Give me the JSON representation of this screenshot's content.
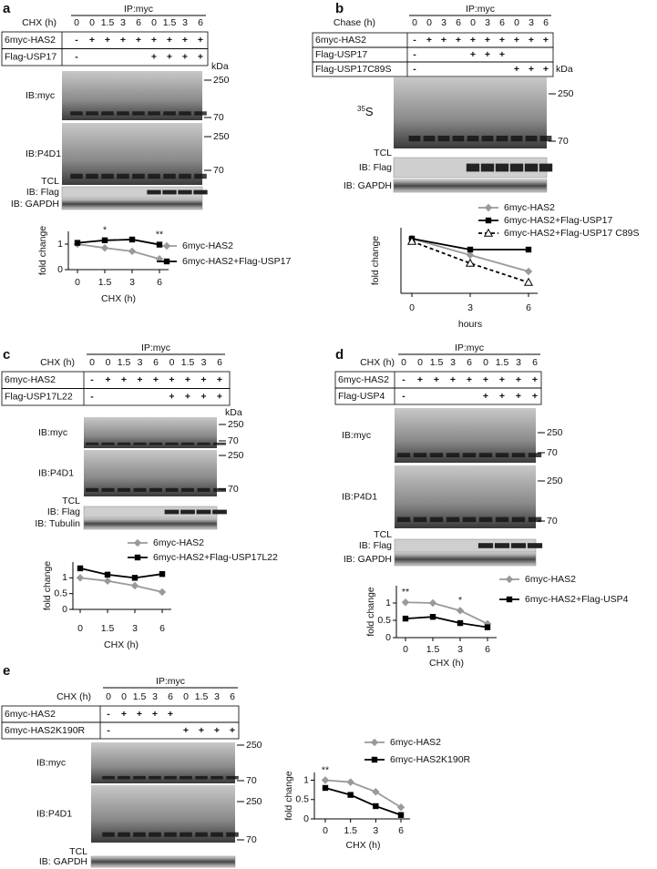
{
  "panels": [
    {
      "label": "a",
      "ip": "IP:myc",
      "time_label": "CHX (h)",
      "times": [
        "0",
        "0",
        "1.5",
        "3",
        "6",
        "0",
        "1.5",
        "3",
        "6"
      ],
      "rows": [
        {
          "name": "6myc-HAS2",
          "signs": [
            "-",
            "+",
            "+",
            "+",
            "+",
            "+",
            "+",
            "+",
            "+"
          ]
        },
        {
          "name": "Flag-USP17",
          "signs": [
            "-",
            null,
            null,
            null,
            null,
            "+",
            "+",
            "+",
            "+"
          ]
        }
      ],
      "kda": "kDa",
      "blots": [
        {
          "label": "IB:myc",
          "markers": [
            "250",
            "70"
          ]
        },
        {
          "label": "IB:P4D1",
          "markers": [
            "250",
            "70"
          ]
        }
      ],
      "tcl": "TCL",
      "strips": [
        "IB: Flag",
        "IB: GAPDH"
      ],
      "chart": {
        "type": "line",
        "ylabel": "fold change",
        "xlabel": "CHX (h)",
        "categories": [
          "0",
          "1.5",
          "3",
          "6"
        ],
        "ylim": [
          0,
          1.5
        ],
        "yticks": [
          0,
          1
        ],
        "annotations": [
          {
            "text": "*",
            "x": "1.5"
          },
          {
            "text": "**",
            "x": "6"
          }
        ],
        "series": [
          {
            "name": "6myc-HAS2",
            "color": "#999999",
            "marker": "diamond",
            "values": [
              1.0,
              0.85,
              0.72,
              0.42
            ]
          },
          {
            "name": "6myc-HAS2+Flag-USP17",
            "color": "#000000",
            "marker": "square",
            "values": [
              1.05,
              1.15,
              1.18,
              0.98
            ]
          }
        ]
      }
    },
    {
      "label": "b",
      "ip": "IP:myc",
      "time_label": "Chase (h)",
      "times": [
        "0",
        "0",
        "3",
        "6",
        "0",
        "3",
        "6",
        "0",
        "3",
        "6"
      ],
      "rows": [
        {
          "name": "6myc-HAS2",
          "signs": [
            "-",
            "+",
            "+",
            "+",
            "+",
            "+",
            "+",
            "+",
            "+",
            "+"
          ]
        },
        {
          "name": "Flag-USP17",
          "signs": [
            "-",
            null,
            null,
            null,
            "+",
            "+",
            "+",
            null,
            null,
            null
          ]
        },
        {
          "name": "Flag-USP17C89S",
          "signs": [
            "-",
            null,
            null,
            null,
            null,
            null,
            null,
            "+",
            "+",
            "+"
          ]
        }
      ],
      "kda": "kDa",
      "blots": [
        {
          "label_sup": "35",
          "label": "S",
          "markers": [
            "250",
            "70"
          ]
        }
      ],
      "tcl": "TCL",
      "strips": [
        "IB: Flag",
        "IB: GAPDH"
      ],
      "chart": {
        "type": "line",
        "ylabel": "fold change",
        "xlabel": "hours",
        "categories": [
          "0",
          "3",
          "6"
        ],
        "ylim": [
          0,
          1.2
        ],
        "yticks": [],
        "annotations": [],
        "series": [
          {
            "name": "6myc-HAS2",
            "color": "#999999",
            "marker": "diamond",
            "values": [
              1.0,
              0.7,
              0.4
            ]
          },
          {
            "name": "6myc-HAS2+Flag-USP17",
            "color": "#000000",
            "marker": "square",
            "values": [
              1.0,
              0.8,
              0.8
            ]
          },
          {
            "name": "6myc-HAS2+Flag-USP17 C89S",
            "color": "#000000",
            "marker": "triangle",
            "dash": true,
            "values": [
              0.95,
              0.55,
              0.2
            ]
          }
        ]
      }
    },
    {
      "label": "c",
      "ip": "IP:myc",
      "time_label": "CHX (h)",
      "times": [
        "0",
        "0",
        "1.5",
        "3",
        "6",
        "0",
        "1.5",
        "3",
        "6"
      ],
      "rows": [
        {
          "name": "6myc-HAS2",
          "signs": [
            "-",
            "+",
            "+",
            "+",
            "+",
            "+",
            "+",
            "+",
            "+"
          ]
        },
        {
          "name": "Flag-USP17L22",
          "signs": [
            "-",
            null,
            null,
            null,
            null,
            "+",
            "+",
            "+",
            "+"
          ]
        }
      ],
      "kda": "kDa",
      "blots": [
        {
          "label": "IB:myc",
          "markers": [
            "250",
            "70"
          ]
        },
        {
          "label": "IB:P4D1",
          "markers": [
            "250",
            "70"
          ]
        }
      ],
      "tcl": "TCL",
      "strips": [
        "IB: Flag",
        "IB: Tubulin"
      ],
      "chart": {
        "type": "line",
        "ylabel": "fold change",
        "xlabel": "CHX (h)",
        "categories": [
          "0",
          "1.5",
          "3",
          "6"
        ],
        "ylim": [
          0,
          1.5
        ],
        "yticks": [
          0,
          0.5,
          1
        ],
        "annotations": [],
        "series": [
          {
            "name": "6myc-HAS2",
            "color": "#999999",
            "marker": "diamond",
            "values": [
              1.0,
              0.9,
              0.75,
              0.55
            ]
          },
          {
            "name": "6myc-HAS2+Flag-USP17L22",
            "color": "#000000",
            "marker": "square",
            "values": [
              1.3,
              1.1,
              1.0,
              1.12
            ]
          }
        ]
      }
    },
    {
      "label": "d",
      "ip": "IP:myc",
      "time_label": "CHX (h)",
      "times": [
        "0",
        "0",
        "1.5",
        "3",
        "6",
        "0",
        "1.5",
        "3",
        "6"
      ],
      "rows": [
        {
          "name": "6myc-HAS2",
          "signs": [
            "-",
            "+",
            "+",
            "+",
            "+",
            "+",
            "+",
            "+",
            "+"
          ]
        },
        {
          "name": "Flag-USP4",
          "signs": [
            "-",
            null,
            null,
            null,
            null,
            "+",
            "+",
            "+",
            "+"
          ]
        }
      ],
      "blots": [
        {
          "label": "IB:myc",
          "markers": [
            "250",
            "70"
          ]
        },
        {
          "label": "IB:P4D1",
          "markers": [
            "250",
            "70"
          ]
        }
      ],
      "tcl": "TCL",
      "strips": [
        "IB: Flag",
        "IB: GAPDH"
      ],
      "chart": {
        "type": "line",
        "ylabel": "fold change",
        "xlabel": "CHX (h)",
        "categories": [
          "0",
          "1.5",
          "3",
          "6"
        ],
        "ylim": [
          0,
          1.5
        ],
        "yticks": [
          0,
          0.5,
          1
        ],
        "annotations": [
          {
            "text": "**",
            "x": "0"
          },
          {
            "text": "*",
            "x": "3"
          }
        ],
        "series": [
          {
            "name": "6myc-HAS2",
            "color": "#999999",
            "marker": "diamond",
            "values": [
              1.02,
              1.0,
              0.78,
              0.4
            ]
          },
          {
            "name": "6myc-HAS2+Flag-USP4",
            "color": "#000000",
            "marker": "square",
            "values": [
              0.55,
              0.6,
              0.42,
              0.3
            ]
          }
        ]
      }
    },
    {
      "label": "e",
      "ip": "IP:myc",
      "time_label": "CHX (h)",
      "times": [
        "0",
        "0",
        "1.5",
        "3",
        "6",
        "0",
        "1.5",
        "3",
        "6"
      ],
      "rows": [
        {
          "name": "6myc-HAS2",
          "signs": [
            "-",
            "+",
            "+",
            "+",
            "+",
            null,
            null,
            null,
            null
          ]
        },
        {
          "name": "6myc-HAS2K190R",
          "signs": [
            "-",
            null,
            null,
            null,
            null,
            "+",
            "+",
            "+",
            "+"
          ]
        }
      ],
      "blots": [
        {
          "label": "IB:myc",
          "markers": [
            "250",
            "70"
          ]
        },
        {
          "label": "IB:P4D1",
          "markers": [
            "250",
            "70"
          ]
        }
      ],
      "tcl": "TCL",
      "strips": [
        "IB: GAPDH"
      ],
      "chart": {
        "type": "line",
        "ylabel": "fold change",
        "xlabel": "CHX (h)",
        "categories": [
          "0",
          "1.5",
          "3",
          "6"
        ],
        "ylim": [
          0,
          1.2
        ],
        "yticks": [
          0,
          0.5,
          1
        ],
        "annotations": [
          {
            "text": "**",
            "x": "0"
          }
        ],
        "series": [
          {
            "name": "6myc-HAS2",
            "color": "#999999",
            "marker": "diamond",
            "values": [
              1.0,
              0.95,
              0.7,
              0.3
            ]
          },
          {
            "name": "6myc-HAS2K190R",
            "color": "#000000",
            "marker": "square",
            "values": [
              0.8,
              0.62,
              0.33,
              0.1
            ]
          }
        ]
      }
    }
  ]
}
